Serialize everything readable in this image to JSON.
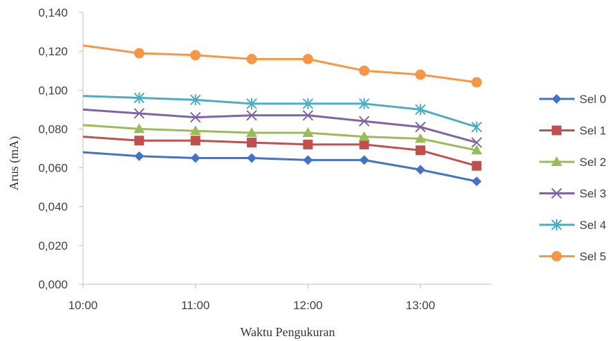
{
  "chart_data": {
    "type": "line",
    "title": "",
    "xlabel": "Waktu Pengukuran",
    "ylabel": "Arus (mA)",
    "ylim": [
      0,
      0.14
    ],
    "y_ticks": [
      "0,000",
      "0,020",
      "0,040",
      "0,060",
      "0,080",
      "0,100",
      "0,120",
      "0,140"
    ],
    "x_ticks": [
      "10:00",
      "11:00",
      "12:00",
      "13:00"
    ],
    "x": [
      "10:00",
      "10:30",
      "11:00",
      "11:30",
      "12:00",
      "12:30",
      "13:00",
      "13:30"
    ],
    "grid": false,
    "legend_position": "right",
    "series": [
      {
        "name": "Sel 0",
        "color": "#4472C4",
        "marker": "diamond",
        "values": [
          0.068,
          0.066,
          0.065,
          0.065,
          0.064,
          0.064,
          0.059,
          0.053
        ]
      },
      {
        "name": "Sel 1",
        "color": "#C0504D",
        "marker": "square",
        "values": [
          0.076,
          0.074,
          0.074,
          0.073,
          0.072,
          0.072,
          0.069,
          0.061
        ]
      },
      {
        "name": "Sel 2",
        "color": "#9BBB59",
        "marker": "triangle",
        "values": [
          0.082,
          0.08,
          0.079,
          0.078,
          0.078,
          0.076,
          0.075,
          0.069
        ]
      },
      {
        "name": "Sel 3",
        "color": "#8064A2",
        "marker": "x",
        "values": [
          0.09,
          0.088,
          0.086,
          0.087,
          0.087,
          0.084,
          0.081,
          0.073
        ]
      },
      {
        "name": "Sel 4",
        "color": "#4BACC6",
        "marker": "star",
        "values": [
          0.097,
          0.096,
          0.095,
          0.093,
          0.093,
          0.093,
          0.09,
          0.081
        ]
      },
      {
        "name": "Sel 5",
        "color": "#F79646",
        "marker": "circle",
        "values": [
          0.123,
          0.119,
          0.118,
          0.116,
          0.116,
          0.11,
          0.108,
          0.104
        ]
      }
    ]
  }
}
